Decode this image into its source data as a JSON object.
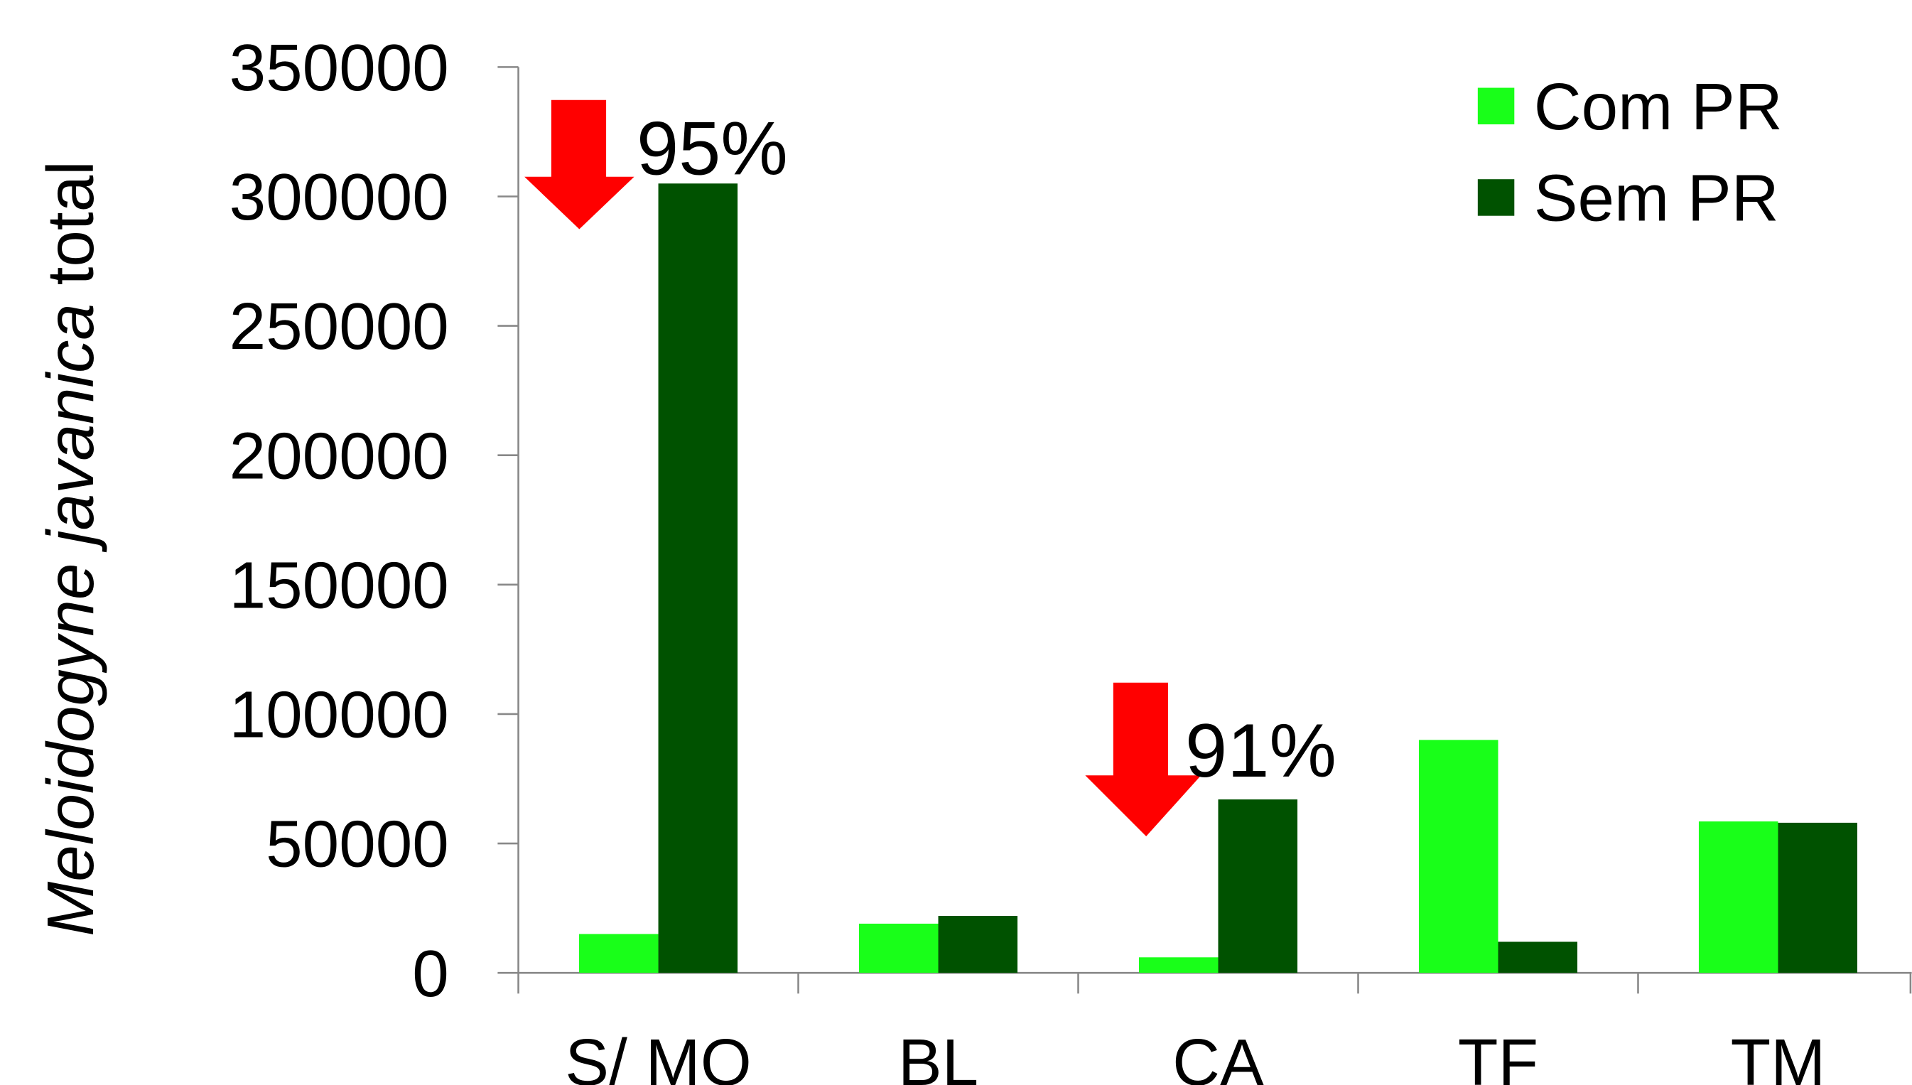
{
  "chart_data": {
    "type": "bar",
    "y_label": {
      "italic": "Meloidogyne javanica",
      "rest": "total"
    },
    "categories": [
      "S/ MO",
      "BL",
      "CA",
      "TF",
      "TM"
    ],
    "series": [
      {
        "name": "Com PR",
        "color": "#19ff19",
        "values": [
          15000,
          19000,
          6000,
          90000,
          58500
        ]
      },
      {
        "name": "Sem PR",
        "color": "#005200",
        "values": [
          305000,
          22000,
          67000,
          12000,
          58000
        ]
      }
    ],
    "annotations": [
      "95%",
      "91%"
    ],
    "ylim": [
      0,
      350000
    ],
    "yticks": [
      0,
      50000,
      100000,
      150000,
      200000,
      250000,
      300000,
      350000
    ],
    "legend": "top-right"
  }
}
